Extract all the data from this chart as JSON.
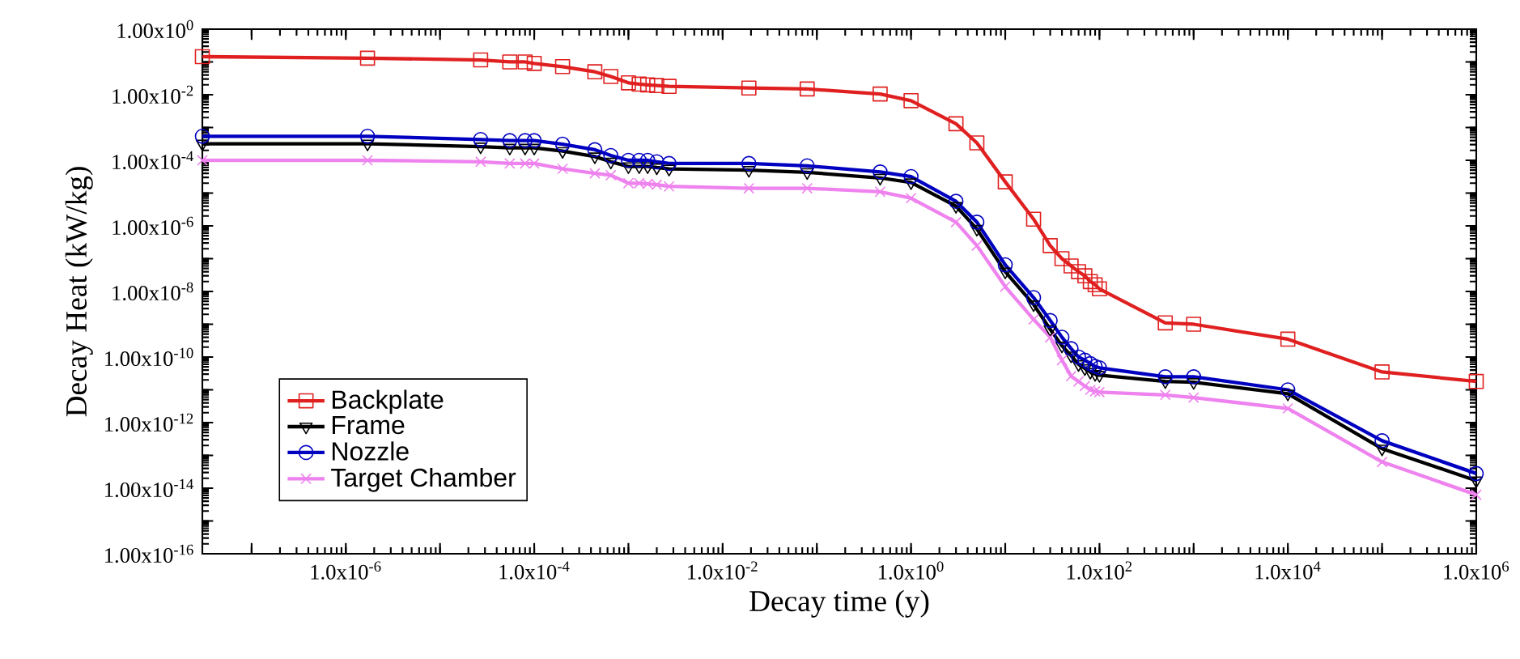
{
  "chart_data": {
    "type": "line",
    "xlabel": "Decay time (y)",
    "ylabel": "Decay Heat (kW/kg)",
    "log": "xy",
    "legend": "bottom left",
    "line_style": "solid",
    "xlim": [
      3e-08,
      1000000.0
    ],
    "ylim": [
      1e-16,
      1
    ],
    "xticks": [
      {
        "value": 1e-07,
        "label": null
      },
      {
        "value": 1e-06,
        "label": "1.0x10$^{-6}$"
      },
      {
        "value": 1e-05,
        "label": null
      },
      {
        "value": 0.0001,
        "label": "1.0x10$^{-4}$"
      },
      {
        "value": 0.001,
        "label": null
      },
      {
        "value": 0.01,
        "label": "1.0x10$^{-2}$"
      },
      {
        "value": 0.1,
        "label": null
      },
      {
        "value": 1,
        "label": "1.0x10$^{0}$"
      },
      {
        "value": 10,
        "label": null
      },
      {
        "value": 100,
        "label": "1.0x10$^{2}$"
      },
      {
        "value": 1000,
        "label": null
      },
      {
        "value": 10000,
        "label": "1.0x10$^{4}$"
      },
      {
        "value": 100000,
        "label": null
      },
      {
        "value": 1000000,
        "label": "1.0x10$^{6}$"
      }
    ],
    "yticks": [
      {
        "value": 1e-16,
        "label": "1.00x10$^{-16}$"
      },
      {
        "value": 1e-15,
        "label": null
      },
      {
        "value": 1e-14,
        "label": "1.00x10$^{-14}$"
      },
      {
        "value": 1e-13,
        "label": null
      },
      {
        "value": 1e-12,
        "label": "1.00x10$^{-12}$"
      },
      {
        "value": 1e-11,
        "label": null
      },
      {
        "value": 1e-10,
        "label": "1.00x10$^{-10}$"
      },
      {
        "value": 1e-09,
        "label": null
      },
      {
        "value": 1e-08,
        "label": "1.00x10$^{-8}$"
      },
      {
        "value": 1e-07,
        "label": null
      },
      {
        "value": 1e-06,
        "label": "1.00x10$^{-6}$"
      },
      {
        "value": 1e-05,
        "label": null
      },
      {
        "value": 0.0001,
        "label": "1.00x10$^{-4}$"
      },
      {
        "value": 0.001,
        "label": null
      },
      {
        "value": 0.01,
        "label": "1.00x10$^{-2}$"
      },
      {
        "value": 0.1,
        "label": null
      },
      {
        "value": 1,
        "label": "1.00x10$^{0}$"
      }
    ],
    "x": [
      3e-08,
      1.7e-06,
      2.7e-05,
      5.5e-05,
      8e-05,
      0.0001,
      0.0002,
      0.00044,
      0.00065,
      0.001,
      0.0013,
      0.0016,
      0.002,
      0.0027,
      0.019,
      0.079,
      0.47,
      1,
      3,
      5,
      10,
      20,
      30,
      40,
      50,
      60,
      70,
      80,
      90,
      100,
      500,
      1000,
      10000,
      100000,
      1000000
    ],
    "series": [
      {
        "name": "Backplate",
        "color": "#e02020",
        "marker": "square",
        "values": [
          0.145,
          0.13,
          0.115,
          0.1,
          0.1,
          0.09,
          0.072,
          0.05,
          0.036,
          0.023,
          0.021,
          0.02,
          0.019,
          0.018,
          0.016,
          0.015,
          0.0105,
          0.0066,
          0.0013,
          0.00034,
          2.2e-05,
          1.6e-06,
          2.5e-07,
          1e-07,
          6e-08,
          4e-08,
          3e-08,
          2e-08,
          1.6e-08,
          1.2e-08,
          1.1e-09,
          1e-09,
          3.5e-10,
          3.5e-11,
          1.8e-11
        ]
      },
      {
        "name": "Frame",
        "color": "#000000",
        "marker": "triangle",
        "values": [
          0.00032,
          0.00032,
          0.00026,
          0.00024,
          0.00024,
          0.00024,
          0.00019,
          0.00013,
          9e-05,
          6.5e-05,
          6.5e-05,
          6.5e-05,
          6e-05,
          5.5e-05,
          5e-05,
          4.3e-05,
          2.9e-05,
          2.1e-05,
          4e-06,
          8e-07,
          4e-08,
          4e-09,
          7e-10,
          2.2e-10,
          1.1e-10,
          6e-11,
          4.5e-11,
          3.5e-11,
          3e-11,
          2.8e-11,
          1.8e-11,
          1.7e-11,
          7.6e-12,
          1.6e-13,
          1.7e-14
        ]
      },
      {
        "name": "Nozzle",
        "color": "#0000c0",
        "marker": "circle",
        "values": [
          0.00054,
          0.00054,
          0.00043,
          0.0004,
          0.0004,
          0.0004,
          0.00031,
          0.00021,
          0.00014,
          0.0001,
          0.0001,
          0.0001,
          9e-05,
          8e-05,
          8e-05,
          6.8e-05,
          4.4e-05,
          3.2e-05,
          5.6e-06,
          1.3e-06,
          6.5e-08,
          6.5e-09,
          1.3e-09,
          4e-10,
          1.8e-10,
          1e-10,
          8e-11,
          6.3e-11,
          5.2e-11,
          4.7e-11,
          2.5e-11,
          2.5e-11,
          1e-11,
          2.8e-13,
          2.8e-14
        ]
      },
      {
        "name": "Target Chamber",
        "color": "#ee82ee",
        "marker": "cross",
        "values": [
          0.0001,
          0.0001,
          9e-05,
          8e-05,
          8e-05,
          8e-05,
          5.5e-05,
          4e-05,
          3.5e-05,
          2e-05,
          2e-05,
          1.9e-05,
          1.8e-05,
          1.6e-05,
          1.4e-05,
          1.4e-05,
          1.1e-05,
          7e-06,
          1.3e-06,
          2.5e-07,
          1.4e-08,
          1.4e-09,
          4e-10,
          8e-11,
          2.6e-11,
          1.8e-11,
          1.3e-11,
          1e-11,
          9e-12,
          8.5e-12,
          7e-12,
          5.8e-12,
          2.7e-12,
          6.3e-14,
          6.3e-15
        ]
      }
    ]
  }
}
